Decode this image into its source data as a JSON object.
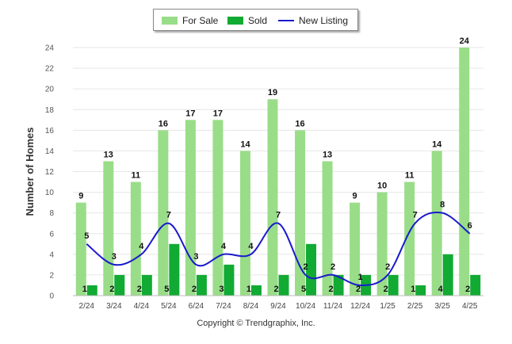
{
  "chart_data": {
    "type": "bar",
    "title": "",
    "xlabel": "",
    "ylabel": "Number of Homes",
    "ylim": [
      0,
      24
    ],
    "yticks": [
      0,
      2,
      4,
      6,
      8,
      10,
      12,
      14,
      16,
      18,
      20,
      22,
      24
    ],
    "grid": true,
    "legend_position": "top-center",
    "categories": [
      "2/24",
      "3/24",
      "4/24",
      "5/24",
      "6/24",
      "7/24",
      "8/24",
      "9/24",
      "10/24",
      "11/24",
      "12/24",
      "1/25",
      "2/25",
      "3/25",
      "4/25"
    ],
    "series": [
      {
        "name": "For Sale",
        "type": "bar",
        "color": "#99dd88",
        "values": [
          9,
          13,
          11,
          16,
          17,
          17,
          14,
          19,
          16,
          13,
          9,
          10,
          11,
          14,
          24
        ]
      },
      {
        "name": "Sold",
        "type": "bar",
        "color": "#11aa33",
        "values": [
          1,
          2,
          2,
          5,
          2,
          3,
          1,
          2,
          5,
          2,
          2,
          2,
          1,
          4,
          2
        ]
      },
      {
        "name": "New Listing",
        "type": "line",
        "color": "#1a1acc",
        "values": [
          5,
          3,
          4,
          7,
          3,
          4,
          4,
          7,
          2,
          2,
          1,
          2,
          7,
          8,
          6
        ]
      }
    ]
  },
  "legend": {
    "for_sale": "For Sale",
    "sold": "Sold",
    "new_listing": "New Listing"
  },
  "footer": {
    "copyright": "Copyright © Trendgraphix, Inc."
  }
}
